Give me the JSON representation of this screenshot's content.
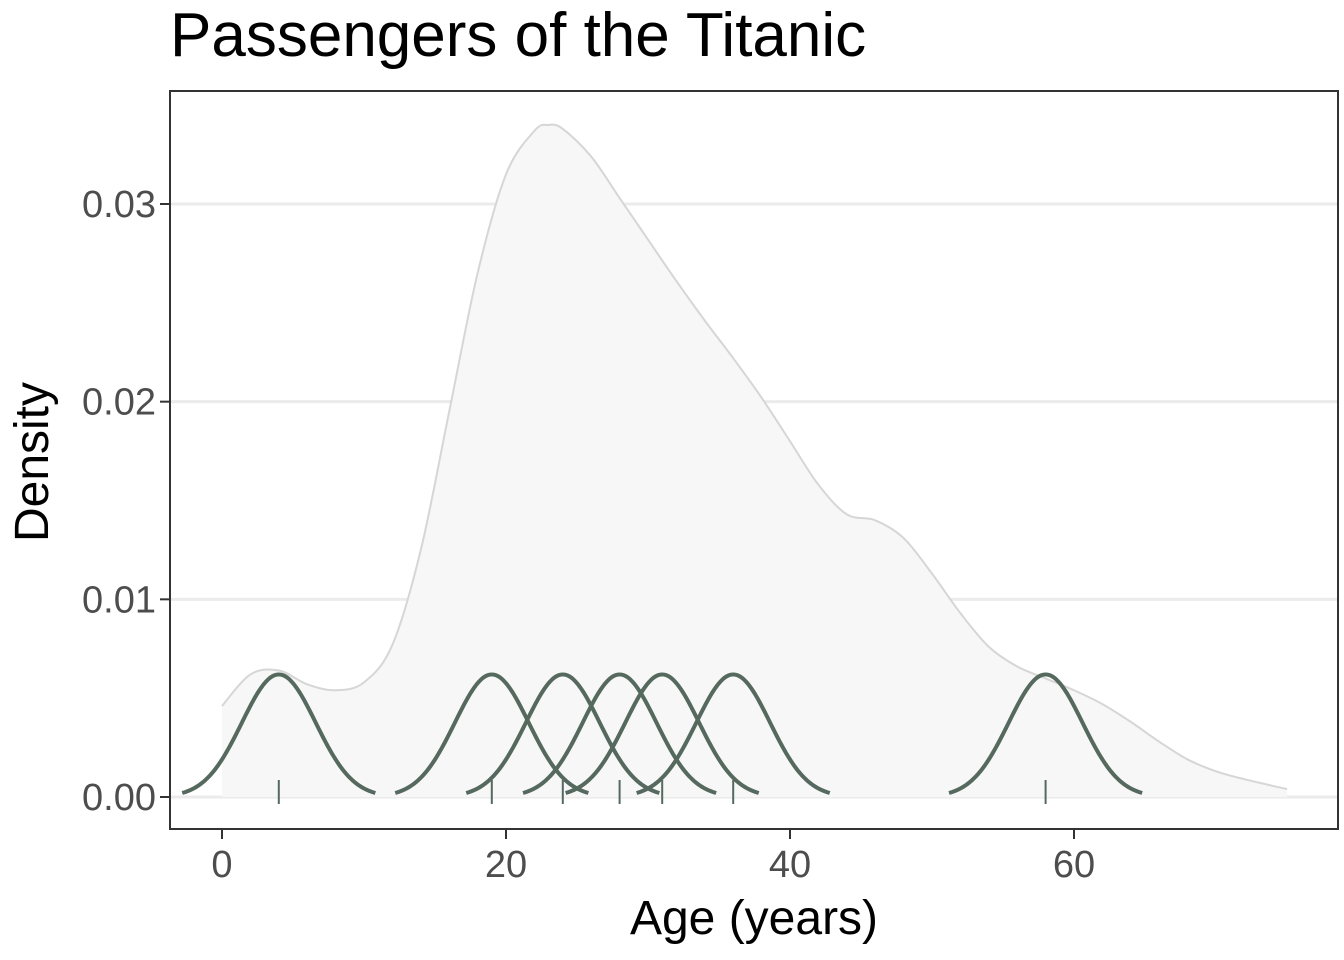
{
  "chart_data": {
    "type": "area",
    "title": "Passengers of the Titanic",
    "xlabel": "Age (years)",
    "ylabel": "Density",
    "xlim": [
      -4,
      78
    ],
    "ylim": [
      -0.0016,
      0.0357
    ],
    "x_ticks": [
      0,
      20,
      40,
      60
    ],
    "y_ticks": [
      0.0,
      0.01,
      0.02,
      0.03
    ],
    "y_tick_labels": [
      "0.00",
      "0.01",
      "0.02",
      "0.03"
    ],
    "grid": "horizontal major lines",
    "legend": "none",
    "overall_density": {
      "x": [
        0,
        2,
        4,
        6,
        8,
        10,
        12,
        14,
        16,
        18,
        20,
        22,
        23,
        24,
        26,
        28,
        30,
        32,
        34,
        36,
        38,
        40,
        42,
        44,
        46,
        48,
        50,
        52,
        54,
        56,
        58,
        60,
        62,
        64,
        66,
        68,
        70,
        72,
        75
      ],
      "y": [
        0.0046,
        0.0062,
        0.0064,
        0.0057,
        0.0054,
        0.0058,
        0.0077,
        0.0125,
        0.0195,
        0.0265,
        0.0315,
        0.0337,
        0.034,
        0.0338,
        0.0324,
        0.0303,
        0.0282,
        0.0261,
        0.0241,
        0.0222,
        0.0202,
        0.018,
        0.0158,
        0.0143,
        0.014,
        0.0131,
        0.0113,
        0.0093,
        0.0076,
        0.0066,
        0.006,
        0.0054,
        0.0047,
        0.0038,
        0.0028,
        0.0019,
        0.0013,
        0.0009,
        0.0004
      ]
    },
    "individual_passengers": {
      "ages": [
        4,
        19,
        24,
        28,
        31,
        36,
        58
      ],
      "kernel_sd": 2.6,
      "kernel_peak": 0.0062,
      "kernel_halfwidth": 6.8
    },
    "colors": {
      "overall_fill": "#f7f7f7",
      "overall_line": "#d6d6d6",
      "kernel_line": "#56695f",
      "rug": "#56695f",
      "grid": "#ebebeb",
      "panel_border": "#333333"
    }
  }
}
